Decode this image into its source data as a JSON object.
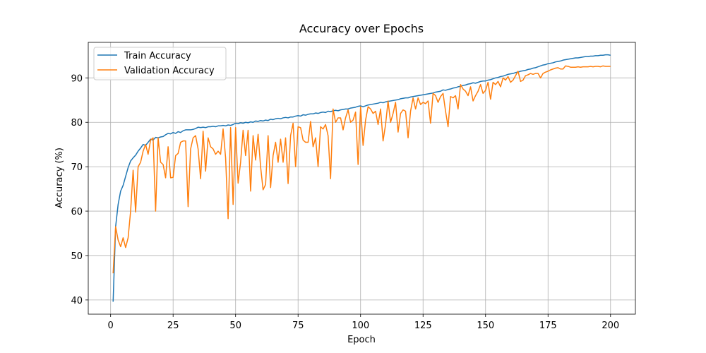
{
  "chart_data": {
    "type": "line",
    "title": "Accuracy over Epochs",
    "xlabel": "Epoch",
    "ylabel": "Accuracy (%)",
    "x": [
      1,
      2,
      3,
      4,
      5,
      6,
      7,
      8,
      9,
      10,
      11,
      12,
      13,
      14,
      15,
      16,
      17,
      18,
      19,
      20,
      21,
      22,
      23,
      24,
      25,
      26,
      27,
      28,
      29,
      30,
      31,
      32,
      33,
      34,
      35,
      36,
      37,
      38,
      39,
      40,
      41,
      42,
      43,
      44,
      45,
      46,
      47,
      48,
      49,
      50,
      51,
      52,
      53,
      54,
      55,
      56,
      57,
      58,
      59,
      60,
      61,
      62,
      63,
      64,
      65,
      66,
      67,
      68,
      69,
      70,
      71,
      72,
      73,
      74,
      75,
      76,
      77,
      78,
      79,
      80,
      81,
      82,
      83,
      84,
      85,
      86,
      87,
      88,
      89,
      90,
      91,
      92,
      93,
      94,
      95,
      96,
      97,
      98,
      99,
      100,
      101,
      102,
      103,
      104,
      105,
      106,
      107,
      108,
      109,
      110,
      111,
      112,
      113,
      114,
      115,
      116,
      117,
      118,
      119,
      120,
      121,
      122,
      123,
      124,
      125,
      126,
      127,
      128,
      129,
      130,
      131,
      132,
      133,
      134,
      135,
      136,
      137,
      138,
      139,
      140,
      141,
      142,
      143,
      144,
      145,
      146,
      147,
      148,
      149,
      150,
      151,
      152,
      153,
      154,
      155,
      156,
      157,
      158,
      159,
      160,
      161,
      162,
      163,
      164,
      165,
      166,
      167,
      168,
      169,
      170,
      171,
      172,
      173,
      174,
      175,
      176,
      177,
      178,
      179,
      180,
      181,
      182,
      183,
      184,
      185,
      186,
      187,
      188,
      189,
      190,
      191,
      192,
      193,
      194,
      195,
      196,
      197,
      198,
      199,
      200
    ],
    "series": [
      {
        "name": "Train Accuracy",
        "color": "#1f77b4",
        "values": [
          39.6,
          56.5,
          61.5,
          64.5,
          65.8,
          67.8,
          69.8,
          71.3,
          72.0,
          72.6,
          73.5,
          74.2,
          75.0,
          74.8,
          75.5,
          76.2,
          76.0,
          76.6,
          76.5,
          76.7,
          76.8,
          77.2,
          77.5,
          77.4,
          77.7,
          77.5,
          77.9,
          77.7,
          78.1,
          78.3,
          78.3,
          78.3,
          78.4,
          78.6,
          78.9,
          78.8,
          78.9,
          78.8,
          79.0,
          79.0,
          79.1,
          79.0,
          79.2,
          79.2,
          79.3,
          79.2,
          79.4,
          79.3,
          79.5,
          79.8,
          79.7,
          79.9,
          79.8,
          80.0,
          79.9,
          80.1,
          80.0,
          80.3,
          80.2,
          80.4,
          80.3,
          80.5,
          80.4,
          80.7,
          80.6,
          80.8,
          80.9,
          80.8,
          81.0,
          81.1,
          81.0,
          81.2,
          81.2,
          81.4,
          81.5,
          81.4,
          81.7,
          81.6,
          81.8,
          81.9,
          81.9,
          82.1,
          82.0,
          82.2,
          82.3,
          82.2,
          82.5,
          82.4,
          82.6,
          82.7,
          82.6,
          82.8,
          82.9,
          83.0,
          83.0,
          83.2,
          83.3,
          83.4,
          83.6,
          83.7,
          83.5,
          83.7,
          83.9,
          84.0,
          84.1,
          84.2,
          84.3,
          84.5,
          84.4,
          84.6,
          84.7,
          84.8,
          84.9,
          85.0,
          85.1,
          85.3,
          85.4,
          85.5,
          85.5,
          85.7,
          85.8,
          85.9,
          86.0,
          86.1,
          86.2,
          86.3,
          86.4,
          86.5,
          86.6,
          86.8,
          86.9,
          87.0,
          87.3,
          87.2,
          87.4,
          87.5,
          87.7,
          87.8,
          88.0,
          88.1,
          88.3,
          88.4,
          88.6,
          88.7,
          88.9,
          88.8,
          89.0,
          89.2,
          89.3,
          89.3,
          89.5,
          89.6,
          89.8,
          90.0,
          90.1,
          90.3,
          90.4,
          90.6,
          90.8,
          90.9,
          91.0,
          91.2,
          91.3,
          91.5,
          91.6,
          91.7,
          91.9,
          92.0,
          92.2,
          92.3,
          92.5,
          92.7,
          92.9,
          93.0,
          93.2,
          93.3,
          93.4,
          93.6,
          93.7,
          93.8,
          94.0,
          94.1,
          94.2,
          94.3,
          94.4,
          94.5,
          94.5,
          94.6,
          94.7,
          94.8,
          94.8,
          94.9,
          94.9,
          95.0,
          95.0,
          95.1,
          95.1,
          95.2,
          95.2,
          95.1
        ]
      },
      {
        "name": "Validation Accuracy",
        "color": "#ff7f0e",
        "values": [
          46,
          56.5,
          53.5,
          52,
          54,
          51.8,
          54,
          60,
          69.2,
          59.8,
          70,
          71,
          73.5,
          75,
          72.8,
          76,
          76.5,
          60,
          76.5,
          71,
          70.5,
          67.5,
          74.5,
          67.5,
          67.6,
          72.5,
          73,
          75.5,
          75.8,
          75.8,
          61,
          74,
          76.5,
          77,
          74,
          67.3,
          78,
          69,
          76.5,
          74.5,
          74,
          72.8,
          73.5,
          72.8,
          78.5,
          72,
          58.3,
          78.8,
          61.5,
          78.8,
          66.3,
          71,
          78.2,
          72.5,
          78.2,
          64.5,
          77,
          71.5,
          77.3,
          70,
          64.8,
          66,
          77,
          65.3,
          72.5,
          75.5,
          71,
          76.2,
          71,
          76.5,
          66.2,
          77,
          79.8,
          70,
          79,
          78.8,
          76,
          75.5,
          75.5,
          80.2,
          74.5,
          76.5,
          70,
          79,
          78.5,
          79.5,
          77,
          67.3,
          83,
          80,
          81,
          81,
          78.3,
          81,
          82.8,
          80,
          80.5,
          82.3,
          70.5,
          83.5,
          74.8,
          80.5,
          83.5,
          83,
          82,
          82.5,
          79.5,
          83,
          75.8,
          79.5,
          84.8,
          80,
          82,
          84.5,
          77.8,
          82,
          82.8,
          82.5,
          76.5,
          82.5,
          85.5,
          83,
          85.5,
          84,
          84.5,
          84.2,
          84.8,
          79.8,
          86.5,
          86,
          84.5,
          85.8,
          86.5,
          82.5,
          79,
          85.8,
          85.5,
          86,
          83,
          88.5,
          87.5,
          87,
          86,
          88,
          84.8,
          86,
          87,
          88.5,
          86.5,
          87.2,
          89,
          85.2,
          89,
          88.5,
          89.2,
          88,
          90,
          89.5,
          90.3,
          89,
          89.5,
          90.5,
          91.5,
          89.2,
          89.5,
          90.5,
          90.7,
          91,
          90.8,
          91,
          91,
          90,
          91,
          91.3,
          91.5,
          91.8,
          92,
          92.2,
          92.3,
          92,
          92,
          92.7,
          92.6,
          92.4,
          92.4,
          92.4,
          92.5,
          92.4,
          92.5,
          92.5,
          92.5,
          92.6,
          92.5,
          92.6,
          92.6,
          92.5,
          92.7,
          92.6,
          92.6,
          92.6
        ]
      }
    ],
    "xlim": [
      -8.95,
      209.95
    ],
    "xticks": [
      0,
      25,
      50,
      75,
      100,
      125,
      150,
      175,
      200
    ],
    "ylim": [
      36.8,
      98.0
    ],
    "yticks": [
      40,
      50,
      60,
      70,
      80,
      90
    ],
    "grid": true,
    "legend": "upper left"
  }
}
